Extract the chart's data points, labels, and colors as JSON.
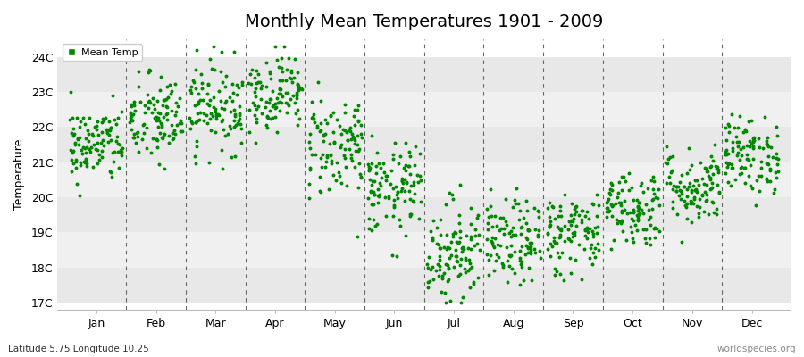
{
  "title": "Monthly Mean Temperatures 1901 - 2009",
  "ylabel": "Temperature",
  "xlabel": "",
  "subtitle": "Latitude 5.75 Longitude 10.25",
  "attribution": "worldspecies.org",
  "legend_label": "Mean Temp",
  "months": [
    "Jan",
    "Feb",
    "Mar",
    "Apr",
    "May",
    "Jun",
    "Jul",
    "Aug",
    "Sep",
    "Oct",
    "Nov",
    "Dec"
  ],
  "yticks": [
    17,
    18,
    19,
    20,
    21,
    22,
    23,
    24
  ],
  "ytick_labels": [
    "17C",
    "18C",
    "19C",
    "20C",
    "21C",
    "22C",
    "23C",
    "24C"
  ],
  "ylim": [
    16.8,
    24.5
  ],
  "dot_color": "#008800",
  "dot_size": 8,
  "background_color": "#ffffff",
  "band_colors": [
    "#e8e8e8",
    "#f0f0f0"
  ],
  "title_fontsize": 14,
  "axis_label_fontsize": 9,
  "tick_label_fontsize": 9,
  "seed": 42,
  "monthly_means": [
    21.5,
    22.2,
    22.6,
    23.0,
    21.5,
    20.2,
    18.5,
    18.7,
    19.0,
    19.7,
    20.3,
    21.2
  ],
  "monthly_stds": [
    0.55,
    0.65,
    0.65,
    0.55,
    0.75,
    0.65,
    0.75,
    0.6,
    0.6,
    0.55,
    0.55,
    0.55
  ],
  "n_years": 109
}
